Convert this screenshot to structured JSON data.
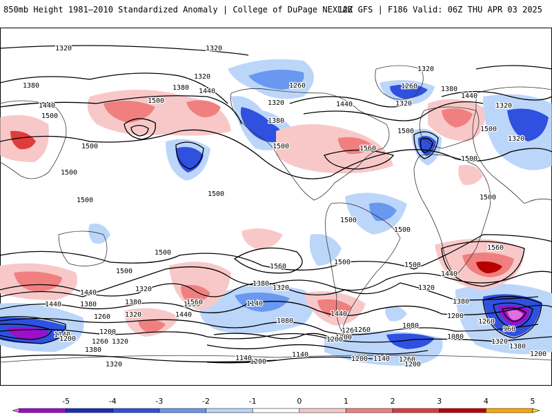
{
  "header": {
    "left_title": "850mb Height 1981–2010 Standardized Anomaly | College of DuPage NEXLAB",
    "right_title": "12Z GFS | F186 Valid: 06Z THU APR 03 2025"
  },
  "colorbar": {
    "ticks": [
      "-5",
      "-4",
      "-3",
      "-2",
      "-1",
      "0",
      "1",
      "2",
      "3",
      "4",
      "5"
    ],
    "colors": [
      "#e070e0",
      "#9b10c8",
      "#1c2fb8",
      "#3050e0",
      "#6a98f0",
      "#bcd6fa",
      "#ffffff",
      "#f8c8c8",
      "#f08080",
      "#e03c3c",
      "#b80000",
      "#ffa500",
      "#ffd040"
    ]
  },
  "contour_labels": [
    {
      "text": "1320"
    },
    {
      "text": "1320"
    },
    {
      "text": "1320"
    },
    {
      "text": "1380"
    },
    {
      "text": "1440"
    },
    {
      "text": "1500"
    },
    {
      "text": "1320"
    },
    {
      "text": "1380"
    },
    {
      "text": "1440"
    },
    {
      "text": "1500"
    },
    {
      "text": "1500"
    },
    {
      "text": "1500"
    },
    {
      "text": "1500"
    },
    {
      "text": "1260"
    },
    {
      "text": "1320"
    },
    {
      "text": "1380"
    },
    {
      "text": "1500"
    },
    {
      "text": "1440"
    },
    {
      "text": "1560"
    },
    {
      "text": "1500"
    },
    {
      "text": "1320"
    },
    {
      "text": "1260"
    },
    {
      "text": "1320"
    },
    {
      "text": "1380"
    },
    {
      "text": "1440"
    },
    {
      "text": "1500"
    },
    {
      "text": "1320"
    },
    {
      "text": "1500"
    },
    {
      "text": "1500"
    },
    {
      "text": "1500"
    },
    {
      "text": "1500"
    },
    {
      "text": "1500"
    },
    {
      "text": "1500"
    },
    {
      "text": "1500"
    },
    {
      "text": "1500"
    },
    {
      "text": "1560"
    },
    {
      "text": "1500"
    },
    {
      "text": "1560"
    },
    {
      "text": "1500"
    },
    {
      "text": "1440"
    },
    {
      "text": "1320"
    },
    {
      "text": "1380"
    },
    {
      "text": "1440"
    },
    {
      "text": "1380"
    },
    {
      "text": "1320"
    },
    {
      "text": "1260"
    },
    {
      "text": "1200"
    },
    {
      "text": "1140"
    },
    {
      "text": "1200"
    },
    {
      "text": "1260"
    },
    {
      "text": "1320"
    },
    {
      "text": "1380"
    },
    {
      "text": "1320"
    },
    {
      "text": "1440"
    },
    {
      "text": "1560"
    },
    {
      "text": "1260"
    },
    {
      "text": "1200"
    },
    {
      "text": "1380"
    },
    {
      "text": "1320"
    },
    {
      "text": "1140"
    },
    {
      "text": "1080"
    },
    {
      "text": "1440"
    },
    {
      "text": "1260"
    },
    {
      "text": "1200"
    },
    {
      "text": "1140"
    },
    {
      "text": "1260"
    },
    {
      "text": "1200"
    },
    {
      "text": "1200"
    },
    {
      "text": "1140"
    },
    {
      "text": "1200"
    },
    {
      "text": "1140"
    },
    {
      "text": "1080"
    },
    {
      "text": "1080"
    },
    {
      "text": "1200"
    },
    {
      "text": "1260"
    },
    {
      "text": "960"
    },
    {
      "text": "1320"
    },
    {
      "text": "1380"
    },
    {
      "text": "1440"
    },
    {
      "text": "1380"
    },
    {
      "text": "1320"
    },
    {
      "text": "1200"
    }
  ]
}
